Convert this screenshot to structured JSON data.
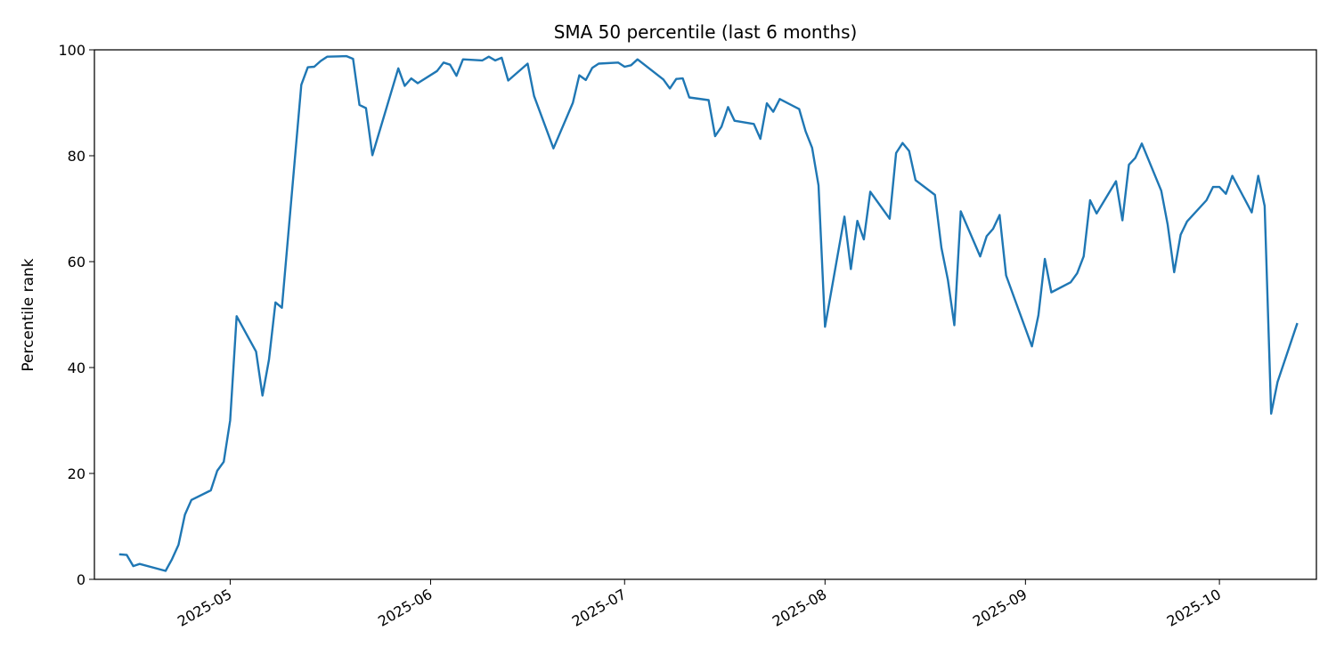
{
  "chart_data": {
    "type": "line",
    "title": "SMA 50 percentile (last 6 months)",
    "xlabel": "",
    "ylabel": "Percentile rank",
    "x_axis_type": "date",
    "xlim": [
      "2025-04-10",
      "2025-10-16"
    ],
    "ylim": [
      0,
      100
    ],
    "yticks": [
      0,
      20,
      40,
      60,
      80,
      100
    ],
    "xticks": [
      "2025-05",
      "2025-06",
      "2025-07",
      "2025-08",
      "2025-09",
      "2025-10"
    ],
    "grid": false,
    "legend": "none",
    "color": "#1f77b4",
    "series": [
      {
        "x": [
          "2025-04-14",
          "2025-04-15",
          "2025-04-16",
          "2025-04-17",
          "2025-04-21",
          "2025-04-22",
          "2025-04-23",
          "2025-04-24",
          "2025-04-25",
          "2025-04-28",
          "2025-04-29",
          "2025-04-30",
          "2025-05-01",
          "2025-05-02",
          "2025-05-05",
          "2025-05-06",
          "2025-05-07",
          "2025-05-08",
          "2025-05-09",
          "2025-05-12",
          "2025-05-13",
          "2025-05-14",
          "2025-05-15",
          "2025-05-16",
          "2025-05-19",
          "2025-05-20",
          "2025-05-21",
          "2025-05-22",
          "2025-05-23",
          "2025-05-27",
          "2025-05-28",
          "2025-05-29",
          "2025-05-30",
          "2025-06-02",
          "2025-06-03",
          "2025-06-04",
          "2025-06-05",
          "2025-06-06",
          "2025-06-09",
          "2025-06-10",
          "2025-06-11",
          "2025-06-12",
          "2025-06-13",
          "2025-06-16",
          "2025-06-17",
          "2025-06-20",
          "2025-06-23",
          "2025-06-24",
          "2025-06-25",
          "2025-06-26",
          "2025-06-27",
          "2025-06-30",
          "2025-07-01",
          "2025-07-02",
          "2025-07-03",
          "2025-07-07",
          "2025-07-08",
          "2025-07-09",
          "2025-07-10",
          "2025-07-11",
          "2025-07-14",
          "2025-07-15",
          "2025-07-16",
          "2025-07-17",
          "2025-07-18",
          "2025-07-21",
          "2025-07-22",
          "2025-07-23",
          "2025-07-24",
          "2025-07-25",
          "2025-07-28",
          "2025-07-29",
          "2025-07-30",
          "2025-07-31",
          "2025-08-01",
          "2025-08-04",
          "2025-08-05",
          "2025-08-06",
          "2025-08-07",
          "2025-08-08",
          "2025-08-11",
          "2025-08-12",
          "2025-08-13",
          "2025-08-14",
          "2025-08-15",
          "2025-08-18",
          "2025-08-19",
          "2025-08-20",
          "2025-08-21",
          "2025-08-22",
          "2025-08-25",
          "2025-08-26",
          "2025-08-27",
          "2025-08-28",
          "2025-08-29",
          "2025-09-02",
          "2025-09-03",
          "2025-09-04",
          "2025-09-05",
          "2025-09-08",
          "2025-09-09",
          "2025-09-10",
          "2025-09-11",
          "2025-09-12",
          "2025-09-15",
          "2025-09-16",
          "2025-09-17",
          "2025-09-18",
          "2025-09-19",
          "2025-09-22",
          "2025-09-23",
          "2025-09-24",
          "2025-09-25",
          "2025-09-26",
          "2025-09-29",
          "2025-09-30",
          "2025-10-01",
          "2025-10-02",
          "2025-10-03",
          "2025-10-06",
          "2025-10-07",
          "2025-10-08",
          "2025-10-09",
          "2025-10-10",
          "2025-10-13"
        ],
        "y": [
          4.7,
          4.6,
          2.5,
          2.9,
          1.6,
          3.8,
          6.5,
          12.2,
          15.0,
          16.8,
          20.5,
          22.2,
          30.0,
          49.7,
          43.0,
          34.7,
          41.5,
          52.3,
          51.3,
          93.4,
          96.7,
          96.8,
          97.9,
          98.7,
          98.8,
          98.3,
          89.6,
          89.0,
          80.1,
          96.5,
          93.2,
          94.6,
          93.7,
          96.0,
          97.6,
          97.2,
          95.1,
          98.2,
          98.0,
          98.7,
          98.0,
          98.5,
          94.2,
          97.4,
          91.3,
          81.4,
          90.0,
          95.2,
          94.3,
          96.6,
          97.4,
          97.6,
          96.8,
          97.1,
          98.2,
          94.4,
          92.7,
          94.5,
          94.6,
          91.0,
          90.5,
          83.7,
          85.5,
          89.2,
          86.6,
          86.0,
          83.2,
          89.9,
          88.3,
          90.7,
          88.8,
          84.6,
          81.5,
          74.4,
          47.7,
          68.5,
          58.6,
          67.7,
          64.2,
          73.2,
          68.1,
          80.5,
          82.4,
          80.9,
          75.4,
          72.6,
          62.6,
          56.6,
          48.0,
          69.5,
          61.0,
          64.8,
          66.2,
          68.8,
          57.4,
          44.0,
          49.9,
          60.5,
          54.2,
          56.1,
          57.8,
          61.0,
          71.6,
          69.1,
          75.2,
          67.8,
          78.3,
          79.6,
          82.3,
          73.4,
          67.0,
          58.0,
          65.1,
          67.6,
          71.6,
          74.1,
          74.1,
          72.8,
          76.2,
          69.3,
          76.2,
          70.5,
          31.3,
          37.3,
          48.2
        ]
      }
    ]
  }
}
